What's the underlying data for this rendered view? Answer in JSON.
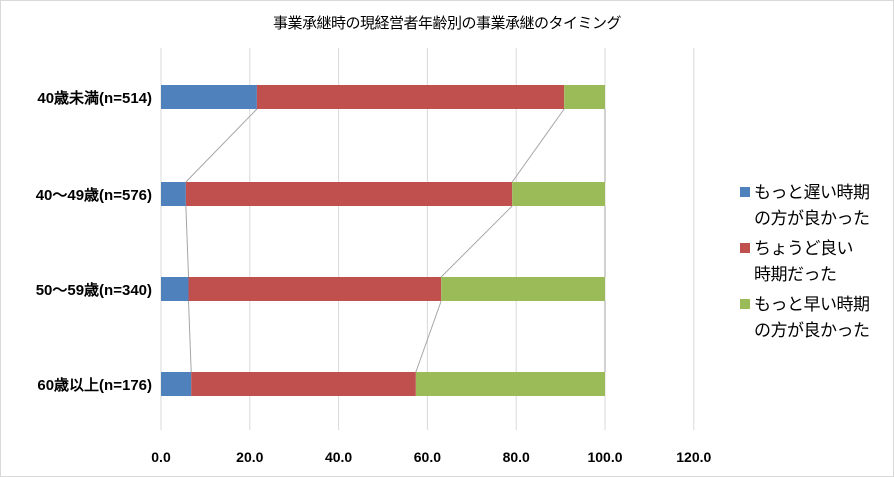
{
  "chart_data": {
    "type": "bar",
    "orientation": "horizontal",
    "stacked": true,
    "title": "事業承継時の現経営者年齢別の事業承継のタイミング",
    "xlabel": "",
    "ylabel": "",
    "xlim": [
      0,
      120
    ],
    "x_ticks": [
      "0.0",
      "20.0",
      "40.0",
      "60.0",
      "80.0",
      "100.0",
      "120.0"
    ],
    "grid": true,
    "series_lines": true,
    "legend_position": "right",
    "categories": [
      "40歳未満(n=514)",
      "40～49歳(n=576)",
      "50～59歳(n=340)",
      "60歳以上(n=176)"
    ],
    "series": [
      {
        "name": "もっと遅い時期の方が良かった",
        "legend_label": "もっと遅い時期\nの方が良かった",
        "color": "#4f81bd",
        "values": [
          21.6,
          5.6,
          6.2,
          6.8
        ]
      },
      {
        "name": "ちょうど良い時期だった",
        "legend_label": "ちょうど良い\n時期だった",
        "color": "#c0504d",
        "values": [
          69.2,
          73.5,
          56.9,
          50.6
        ]
      },
      {
        "name": "もっと早い時期の方が良かった",
        "legend_label": "もっと早い時期\nの方が良かった",
        "color": "#9bbb59",
        "values": [
          9.2,
          20.9,
          36.9,
          42.6
        ]
      }
    ]
  }
}
